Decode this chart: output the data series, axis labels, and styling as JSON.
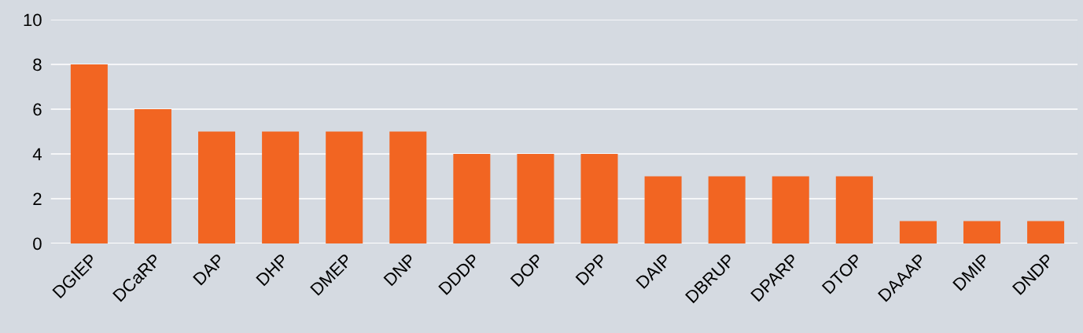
{
  "chart_data": {
    "type": "bar",
    "categories": [
      "DGIEP",
      "DCaRP",
      "DAP",
      "DHP",
      "DMEP",
      "DNP",
      "DDDP",
      "DOP",
      "DPP",
      "DAIP",
      "DBRUP",
      "DPARP",
      "DTOP",
      "DAAAP",
      "DMIP",
      "DNDP"
    ],
    "values": [
      8,
      6,
      5,
      5,
      5,
      5,
      4,
      4,
      4,
      3,
      3,
      3,
      3,
      1,
      1,
      1
    ],
    "color": "#f26522",
    "ylim": [
      0,
      10
    ],
    "yticks": [
      0,
      2,
      4,
      6,
      8,
      10
    ],
    "grid": "y",
    "legend": false
  }
}
